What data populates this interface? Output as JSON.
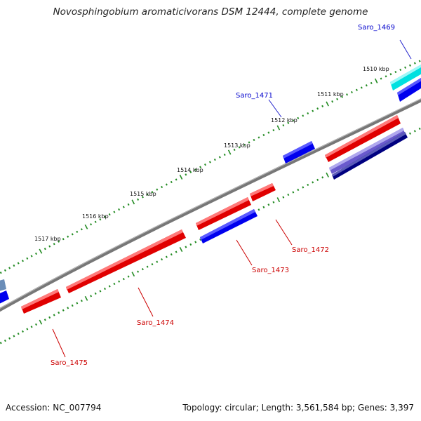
{
  "title": "Novosphingobium aromaticivorans DSM 12444, complete genome",
  "footer": {
    "accession": "Accession: NC_007794",
    "summary": "Topology: circular; Length: 3,561,584 bp; Genes: 3,397"
  },
  "scale_labels": [
    "1510 kbp",
    "1511 kbp",
    "1512 kbp",
    "1513 kbp",
    "1514 kbp",
    "1515 kbp",
    "1516 kbp",
    "1517 kbp"
  ],
  "genes": [
    {
      "name": "Saro_1469",
      "color": "#0000cc"
    },
    {
      "name": "Saro_1471",
      "color": "#0000cc"
    },
    {
      "name": "Saro_1472",
      "color": "#cc0000"
    },
    {
      "name": "Saro_1473",
      "color": "#cc0000"
    },
    {
      "name": "Saro_1474",
      "color": "#cc0000"
    },
    {
      "name": "Saro_1475",
      "color": "#cc0000"
    }
  ],
  "colors": {
    "backbone": "#808080",
    "tick": "#228b22",
    "forward_gene": "#ff0000",
    "reverse_gene": "#0000ff",
    "cyan_gene": "#00e5e5",
    "purple_gene": "#7b68c8",
    "navy_gene": "#000080",
    "steel_gene": "#6a8db8"
  }
}
